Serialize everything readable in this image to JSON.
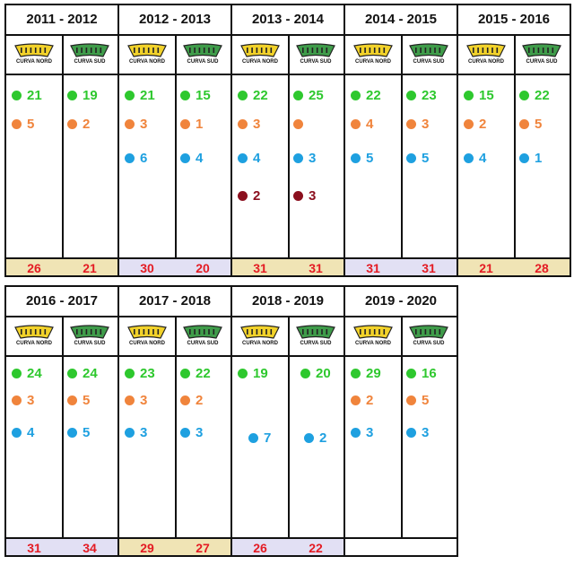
{
  "colors": {
    "green": "#2ec82e",
    "orange": "#f0843c",
    "blue": "#1ea0e0",
    "darkred": "#8b0f1e",
    "tan": "#f0e4b5",
    "lavender": "#e2e0f4",
    "total_text": "#e41b23",
    "nord_fill": "#f2d22a",
    "sud_fill": "#3f9c4a"
  },
  "icons": {
    "nord": "yellow-stadium-curve-icon",
    "sud": "green-stadium-curve-icon"
  },
  "labels": {
    "nord": "CURVA NORD",
    "sud": "CURVA SUD"
  },
  "seasons": [
    {
      "title": "2011 - 2012",
      "nord": {
        "entries": [
          {
            "color": "green",
            "value": "21"
          },
          {
            "color": "orange",
            "value": "5"
          }
        ],
        "total": "26",
        "total_bg": "tan"
      },
      "sud": {
        "entries": [
          {
            "color": "green",
            "value": "19"
          },
          {
            "color": "orange",
            "value": "2"
          }
        ],
        "total": "21",
        "total_bg": "tan"
      }
    },
    {
      "title": "2012 - 2013",
      "nord": {
        "entries": [
          {
            "color": "green",
            "value": "21"
          },
          {
            "color": "orange",
            "value": "3"
          },
          {
            "color": "blue",
            "value": "6"
          }
        ],
        "total": "30",
        "total_bg": "lavender"
      },
      "sud": {
        "entries": [
          {
            "color": "green",
            "value": "15"
          },
          {
            "color": "orange",
            "value": "1"
          },
          {
            "color": "blue",
            "value": "4"
          }
        ],
        "total": "20",
        "total_bg": "lavender"
      }
    },
    {
      "title": "2013 - 2014",
      "nord": {
        "entries": [
          {
            "color": "green",
            "value": "22"
          },
          {
            "color": "orange",
            "value": "3"
          },
          {
            "color": "blue",
            "value": "4"
          },
          {
            "color": "darkred",
            "value": "2"
          }
        ],
        "total": "31",
        "total_bg": "tan"
      },
      "sud": {
        "entries": [
          {
            "color": "green",
            "value": "25"
          },
          {
            "color": "orange",
            "value": ""
          },
          {
            "color": "blue",
            "value": "3"
          },
          {
            "color": "darkred",
            "value": "3"
          }
        ],
        "total": "31",
        "total_bg": "tan"
      }
    },
    {
      "title": "2014 - 2015",
      "nord": {
        "entries": [
          {
            "color": "green",
            "value": "22"
          },
          {
            "color": "orange",
            "value": "4"
          },
          {
            "color": "blue",
            "value": "5"
          }
        ],
        "total": "31",
        "total_bg": "lavender"
      },
      "sud": {
        "entries": [
          {
            "color": "green",
            "value": "23"
          },
          {
            "color": "orange",
            "value": "3"
          },
          {
            "color": "blue",
            "value": "5"
          }
        ],
        "total": "31",
        "total_bg": "lavender"
      }
    },
    {
      "title": "2015 - 2016",
      "nord": {
        "entries": [
          {
            "color": "green",
            "value": "15"
          },
          {
            "color": "orange",
            "value": "2"
          },
          {
            "color": "blue",
            "value": "4"
          }
        ],
        "total": "21",
        "total_bg": "tan"
      },
      "sud": {
        "entries": [
          {
            "color": "green",
            "value": "22"
          },
          {
            "color": "orange",
            "value": "5"
          },
          {
            "color": "blue",
            "value": "1"
          }
        ],
        "total": "28",
        "total_bg": "tan"
      }
    },
    {
      "title": "2016 - 2017",
      "nord": {
        "entries": [
          {
            "color": "green",
            "value": "24"
          },
          {
            "color": "orange",
            "value": "3"
          },
          {
            "color": "blue",
            "value": "4"
          }
        ],
        "total": "31",
        "total_bg": "lavender"
      },
      "sud": {
        "entries": [
          {
            "color": "green",
            "value": "24"
          },
          {
            "color": "orange",
            "value": "5"
          },
          {
            "color": "blue",
            "value": "5"
          }
        ],
        "total": "34",
        "total_bg": "lavender"
      }
    },
    {
      "title": "2017 - 2018",
      "nord": {
        "entries": [
          {
            "color": "green",
            "value": "23"
          },
          {
            "color": "orange",
            "value": "3"
          },
          {
            "color": "blue",
            "value": "3"
          }
        ],
        "total": "29",
        "total_bg": "tan"
      },
      "sud": {
        "entries": [
          {
            "color": "green",
            "value": "22"
          },
          {
            "color": "orange",
            "value": "2"
          },
          {
            "color": "blue",
            "value": "3"
          }
        ],
        "total": "27",
        "total_bg": "tan"
      }
    },
    {
      "title": "2018 - 2019",
      "nord": {
        "entries": [
          {
            "color": "green",
            "value": "19"
          },
          {
            "color": "blue",
            "value": "7"
          }
        ],
        "total": "26",
        "total_bg": "lavender"
      },
      "sud": {
        "entries": [
          {
            "color": "green",
            "value": "20"
          },
          {
            "color": "blue",
            "value": "2"
          }
        ],
        "total": "22",
        "total_bg": "lavender"
      }
    },
    {
      "title": "2019 - 2020",
      "nord": {
        "entries": [
          {
            "color": "green",
            "value": "29"
          },
          {
            "color": "orange",
            "value": "2"
          },
          {
            "color": "blue",
            "value": "3"
          }
        ],
        "total": "",
        "total_bg": "white"
      },
      "sud": {
        "entries": [
          {
            "color": "green",
            "value": "16"
          },
          {
            "color": "orange",
            "value": "5"
          },
          {
            "color": "blue",
            "value": "3"
          }
        ],
        "total": "",
        "total_bg": "white"
      }
    }
  ]
}
